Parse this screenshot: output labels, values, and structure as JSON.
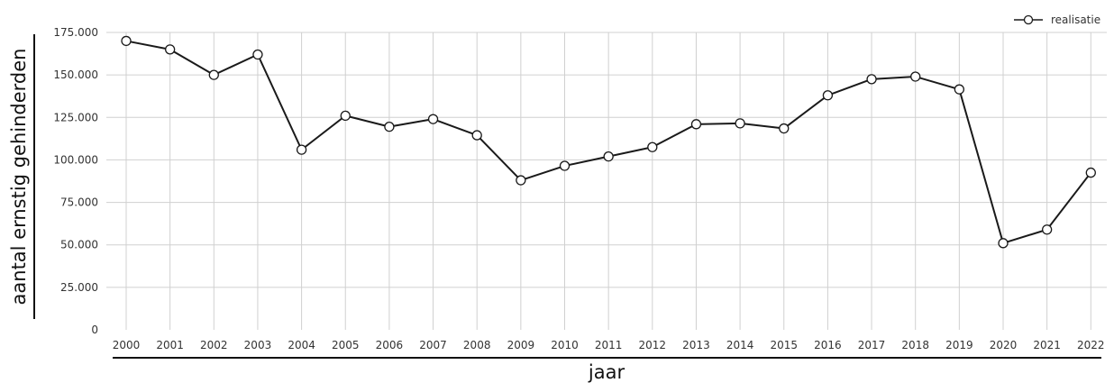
{
  "chart_data": {
    "type": "line",
    "xlabel": "jaar",
    "ylabel": "aantal ernstig gehinderden",
    "ylim": [
      0,
      175000
    ],
    "y_ticks": [
      0,
      25000,
      50000,
      75000,
      100000,
      125000,
      150000,
      175000
    ],
    "y_tick_labels": [
      "0",
      "25.000",
      "50.000",
      "75.000",
      "100.000",
      "125.000",
      "150.000",
      "175.000"
    ],
    "categories": [
      "2000",
      "2001",
      "2002",
      "2003",
      "2004",
      "2005",
      "2006",
      "2007",
      "2008",
      "2009",
      "2010",
      "2011",
      "2012",
      "2013",
      "2014",
      "2015",
      "2016",
      "2017",
      "2018",
      "2019",
      "2020",
      "2021",
      "2022"
    ],
    "series": [
      {
        "name": "realisatie",
        "values": [
          170000,
          165000,
          150000,
          162000,
          106000,
          126000,
          119500,
          124000,
          114500,
          88000,
          96500,
          102000,
          107500,
          121000,
          121500,
          118500,
          138000,
          147500,
          149000,
          141500,
          51000,
          59000,
          92500
        ]
      }
    ],
    "grid": true,
    "legend_position": "top-right",
    "line_color": "#1a1a1a",
    "marker_fill": "#ffffff",
    "grid_color": "#d0d0d0"
  }
}
